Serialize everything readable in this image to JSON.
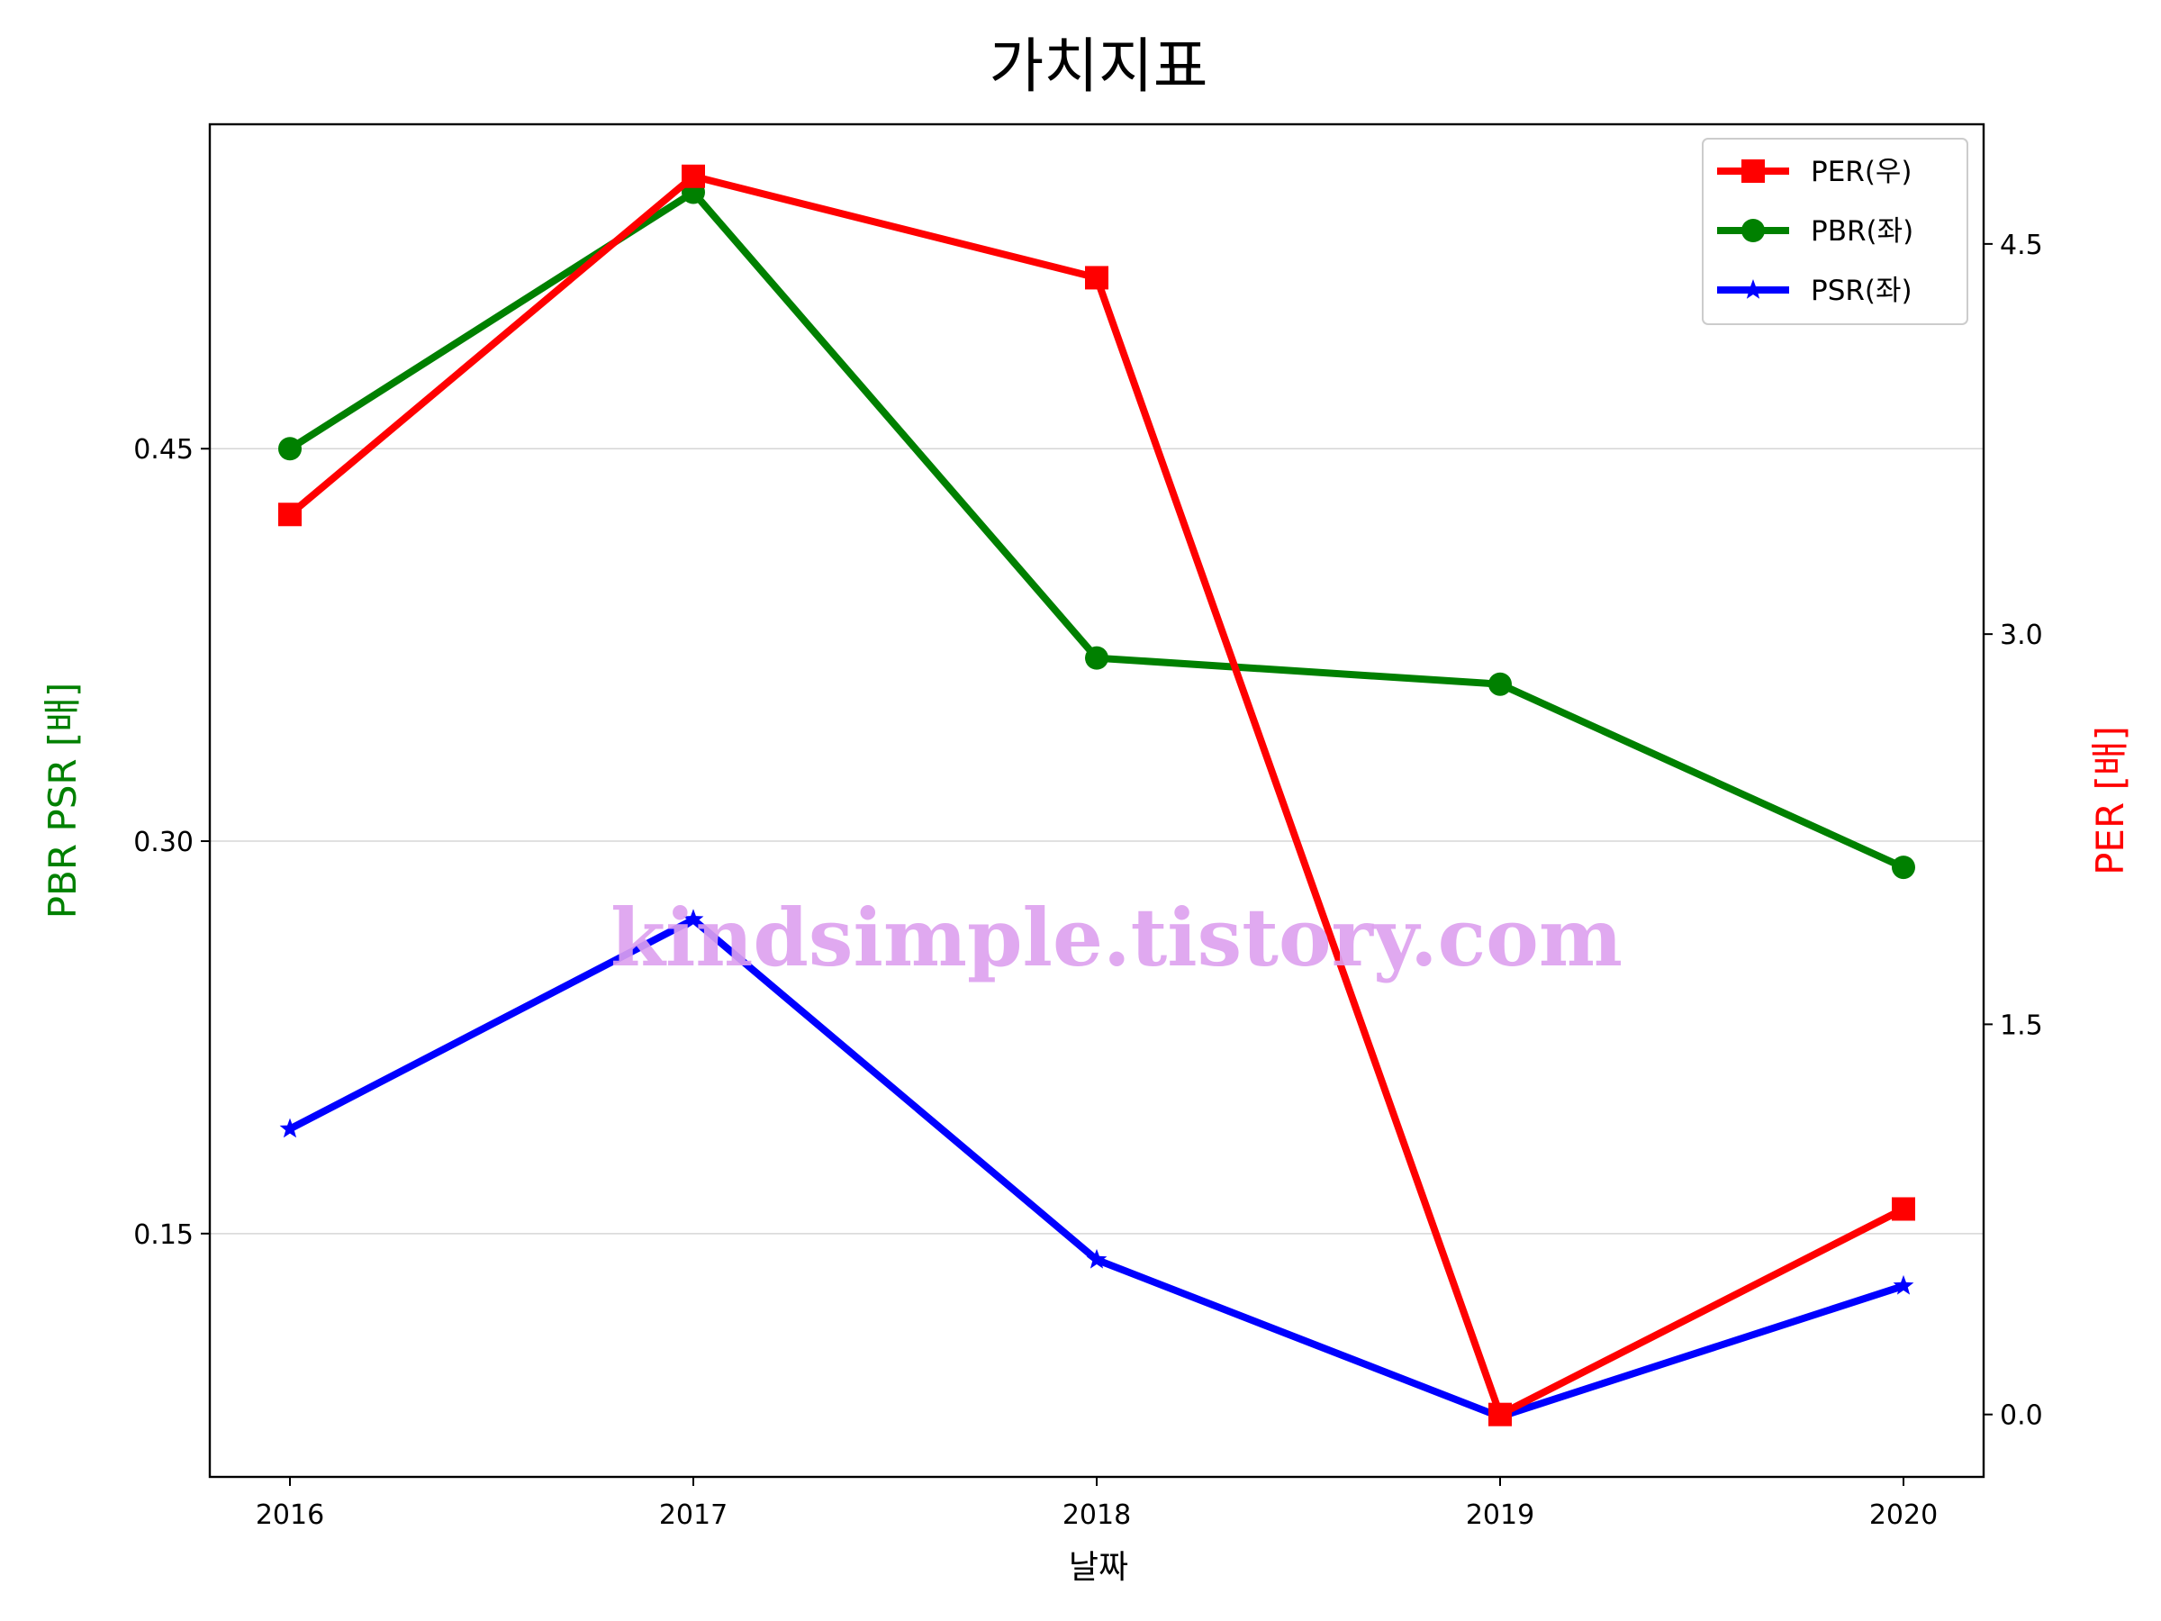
{
  "chart_data": {
    "type": "line",
    "title": "가치지표",
    "xlabel": "날짜",
    "ylabel_left": "PBR PSR [배]",
    "ylabel_right": "PER [배]",
    "watermark": "kindsimple.tistory.com",
    "categories": [
      "2016",
      "2017",
      "2018",
      "2019",
      "2020"
    ],
    "left_axis": {
      "ylim": [
        0.057,
        0.574
      ],
      "ticks": [
        0.15,
        0.3,
        0.45
      ],
      "tick_labels": [
        "0.15",
        "0.30",
        "0.45"
      ],
      "label_color": "#008000"
    },
    "right_axis": {
      "ylim": [
        -0.24,
        4.96
      ],
      "ticks": [
        0.0,
        1.5,
        3.0,
        4.5
      ],
      "tick_labels": [
        "0.0",
        "1.5",
        "3.0",
        "4.5"
      ],
      "label_color": "#ff0000"
    },
    "series": [
      {
        "name": "PER(우)",
        "axis": "right",
        "color": "#ff0000",
        "marker": "square",
        "values": [
          3.46,
          4.76,
          4.37,
          0.0,
          0.79
        ]
      },
      {
        "name": "PBR(좌)",
        "axis": "left",
        "color": "#008000",
        "marker": "circle",
        "values": [
          0.45,
          0.548,
          0.37,
          0.36,
          0.29
        ]
      },
      {
        "name": "PSR(좌)",
        "axis": "left",
        "color": "#0000ff",
        "marker": "star",
        "values": [
          0.19,
          0.27,
          0.14,
          0.08,
          0.13
        ]
      }
    ],
    "grid": "horizontal",
    "legend_position": "top-right"
  }
}
